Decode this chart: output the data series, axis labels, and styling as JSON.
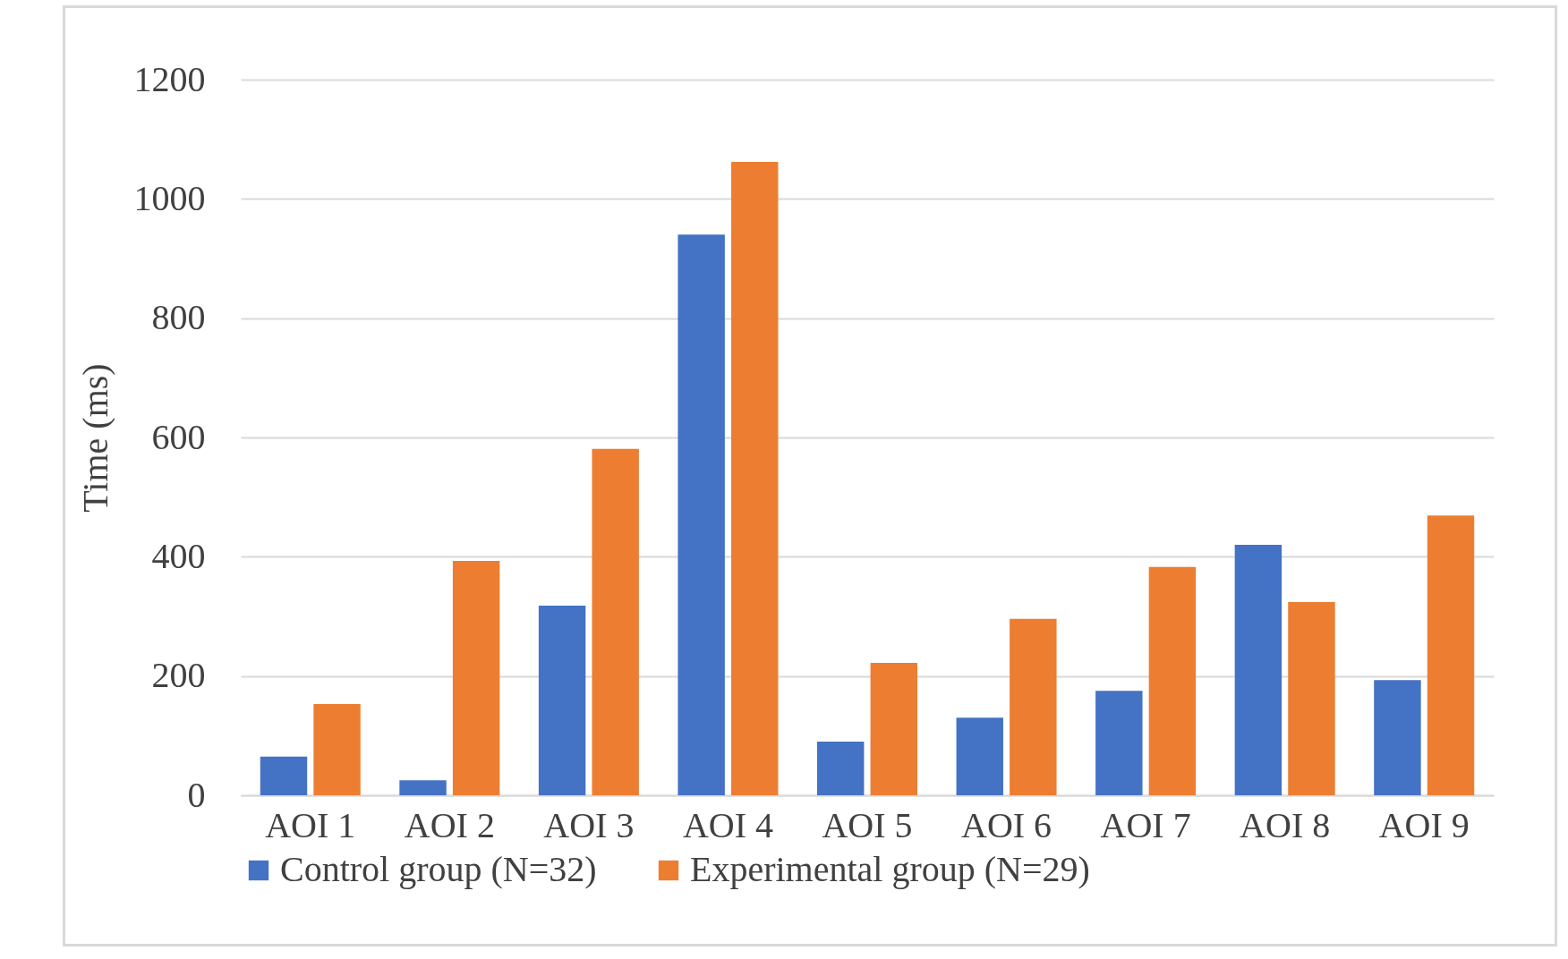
{
  "chart_data": {
    "type": "bar",
    "ylabel": "Time (ms)",
    "categories": [
      "AOI 1",
      "AOI 2",
      "AOI 3",
      "AOI 4",
      "AOI 5",
      "AOI 6",
      "AOI 7",
      "AOI 8",
      "AOI 9"
    ],
    "series": [
      {
        "name": "Control group (N=32)",
        "color": "#4472c4",
        "values": [
          65,
          25,
          318,
          940,
          90,
          130,
          175,
          420,
          193
        ]
      },
      {
        "name": "Experimental group (N=29)",
        "color": "#ed7d31",
        "values": [
          153,
          393,
          581,
          1062,
          222,
          296,
          383,
          324,
          469
        ]
      }
    ],
    "ylim": [
      0,
      1200
    ],
    "yticks": [
      0,
      200,
      400,
      600,
      800,
      1000,
      1200
    ],
    "grid": "y",
    "legend": "bottom"
  }
}
